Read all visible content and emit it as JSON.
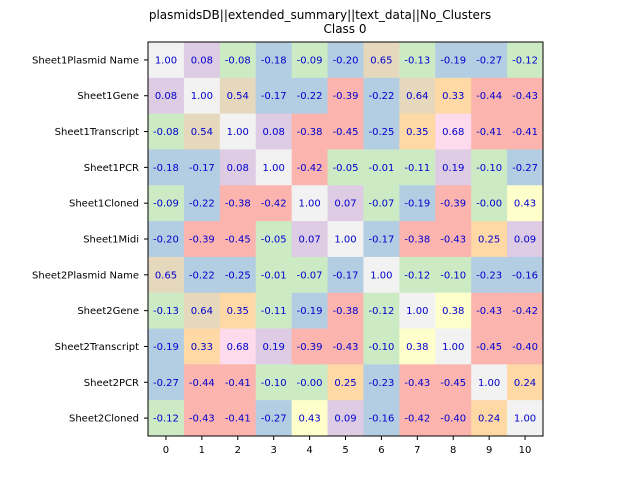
{
  "chart_data": {
    "type": "heatmap",
    "title": "plasmidsDB||extended_summary||text_data||No_Clusters",
    "subtitle": "Class 0",
    "xlabel": "",
    "ylabel": "",
    "x_ticks": [
      "0",
      "1",
      "2",
      "3",
      "4",
      "5",
      "6",
      "7",
      "8",
      "9",
      "10"
    ],
    "rows": [
      "Sheet1Plasmid Name",
      "Sheet1Gene",
      "Sheet1Transcript",
      "Sheet1PCR",
      "Sheet1Cloned",
      "Sheet1Midi",
      "Sheet2Plasmid Name",
      "Sheet2Gene",
      "Sheet2Transcript",
      "Sheet2PCR",
      "Sheet2Cloned"
    ],
    "values": [
      [
        1.0,
        0.08,
        -0.08,
        -0.18,
        -0.09,
        -0.2,
        0.65,
        -0.13,
        -0.19,
        -0.27,
        -0.12
      ],
      [
        0.08,
        1.0,
        0.54,
        -0.17,
        -0.22,
        -0.39,
        -0.22,
        0.64,
        0.33,
        -0.44,
        -0.43
      ],
      [
        -0.08,
        0.54,
        1.0,
        0.08,
        -0.38,
        -0.45,
        -0.25,
        0.35,
        0.68,
        -0.41,
        -0.41
      ],
      [
        -0.18,
        -0.17,
        0.08,
        1.0,
        -0.42,
        -0.05,
        -0.01,
        -0.11,
        0.19,
        -0.1,
        -0.27
      ],
      [
        -0.09,
        -0.22,
        -0.38,
        -0.42,
        1.0,
        0.07,
        -0.07,
        -0.19,
        -0.39,
        -0.0,
        0.43
      ],
      [
        -0.2,
        -0.39,
        -0.45,
        -0.05,
        0.07,
        1.0,
        -0.17,
        -0.38,
        -0.43,
        0.25,
        0.09
      ],
      [
        0.65,
        -0.22,
        -0.25,
        -0.01,
        -0.07,
        -0.17,
        1.0,
        -0.12,
        -0.1,
        -0.23,
        -0.16
      ],
      [
        -0.13,
        0.64,
        0.35,
        -0.11,
        -0.19,
        -0.38,
        -0.12,
        1.0,
        0.38,
        -0.43,
        -0.42
      ],
      [
        -0.19,
        0.33,
        0.68,
        0.19,
        -0.39,
        -0.43,
        -0.1,
        0.38,
        1.0,
        -0.45,
        -0.4
      ],
      [
        -0.27,
        -0.44,
        -0.41,
        -0.1,
        -0.0,
        0.25,
        -0.23,
        -0.43,
        -0.45,
        1.0,
        0.24
      ],
      [
        -0.12,
        -0.43,
        -0.41,
        -0.27,
        0.43,
        0.09,
        -0.16,
        -0.42,
        -0.4,
        0.24,
        1.0
      ]
    ],
    "value_labels": [
      [
        "1.00",
        "0.08",
        "-0.08",
        "-0.18",
        "-0.09",
        "-0.20",
        "0.65",
        "-0.13",
        "-0.19",
        "-0.27",
        "-0.12"
      ],
      [
        "0.08",
        "1.00",
        "0.54",
        "-0.17",
        "-0.22",
        "-0.39",
        "-0.22",
        "0.64",
        "0.33",
        "-0.44",
        "-0.43"
      ],
      [
        "-0.08",
        "0.54",
        "1.00",
        "0.08",
        "-0.38",
        "-0.45",
        "-0.25",
        "0.35",
        "0.68",
        "-0.41",
        "-0.41"
      ],
      [
        "-0.18",
        "-0.17",
        "0.08",
        "1.00",
        "-0.42",
        "-0.05",
        "-0.01",
        "-0.11",
        "0.19",
        "-0.10",
        "-0.27"
      ],
      [
        "-0.09",
        "-0.22",
        "-0.38",
        "-0.42",
        "1.00",
        "0.07",
        "-0.07",
        "-0.19",
        "-0.39",
        "-0.00",
        "0.43"
      ],
      [
        "-0.20",
        "-0.39",
        "-0.45",
        "-0.05",
        "0.07",
        "1.00",
        "-0.17",
        "-0.38",
        "-0.43",
        "0.25",
        "0.09"
      ],
      [
        "0.65",
        "-0.22",
        "-0.25",
        "-0.01",
        "-0.07",
        "-0.17",
        "1.00",
        "-0.12",
        "-0.10",
        "-0.23",
        "-0.16"
      ],
      [
        "-0.13",
        "0.64",
        "0.35",
        "-0.11",
        "-0.19",
        "-0.38",
        "-0.12",
        "1.00",
        "0.38",
        "-0.43",
        "-0.42"
      ],
      [
        "-0.19",
        "0.33",
        "0.68",
        "0.19",
        "-0.39",
        "-0.43",
        "-0.10",
        "0.38",
        "1.00",
        "-0.45",
        "-0.40"
      ],
      [
        "-0.27",
        "-0.44",
        "-0.41",
        "-0.10",
        "-0.00",
        "0.25",
        "-0.23",
        "-0.43",
        "-0.45",
        "1.00",
        "0.24"
      ],
      [
        "-0.12",
        "-0.43",
        "-0.41",
        "-0.27",
        "0.43",
        "0.09",
        "-0.16",
        "-0.42",
        "-0.40",
        "0.24",
        "1.00"
      ]
    ],
    "colormap": "Pastel1",
    "cell_colors": [
      [
        "#f2f2f2",
        "#decbe4",
        "#ccebc5",
        "#b3cde3",
        "#ccebc5",
        "#b3cde3",
        "#e5d8bd",
        "#ccebc5",
        "#b3cde3",
        "#b3cde3",
        "#ccebc5"
      ],
      [
        "#decbe4",
        "#f2f2f2",
        "#e5d8bd",
        "#b3cde3",
        "#b3cde3",
        "#fbb4ae",
        "#b3cde3",
        "#e5d8bd",
        "#fed9a6",
        "#fbb4ae",
        "#fbb4ae"
      ],
      [
        "#ccebc5",
        "#e5d8bd",
        "#f2f2f2",
        "#decbe4",
        "#fbb4ae",
        "#fbb4ae",
        "#b3cde3",
        "#fed9a6",
        "#fddaec",
        "#fbb4ae",
        "#fbb4ae"
      ],
      [
        "#b3cde3",
        "#b3cde3",
        "#decbe4",
        "#f2f2f2",
        "#fbb4ae",
        "#ccebc5",
        "#ccebc5",
        "#ccebc5",
        "#decbe4",
        "#ccebc5",
        "#b3cde3"
      ],
      [
        "#ccebc5",
        "#b3cde3",
        "#fbb4ae",
        "#fbb4ae",
        "#f2f2f2",
        "#decbe4",
        "#ccebc5",
        "#b3cde3",
        "#fbb4ae",
        "#ccebc5",
        "#ffffcc"
      ],
      [
        "#b3cde3",
        "#fbb4ae",
        "#fbb4ae",
        "#ccebc5",
        "#decbe4",
        "#f2f2f2",
        "#b3cde3",
        "#fbb4ae",
        "#fbb4ae",
        "#fed9a6",
        "#decbe4"
      ],
      [
        "#e5d8bd",
        "#b3cde3",
        "#b3cde3",
        "#ccebc5",
        "#ccebc5",
        "#b3cde3",
        "#f2f2f2",
        "#ccebc5",
        "#ccebc5",
        "#b3cde3",
        "#b3cde3"
      ],
      [
        "#ccebc5",
        "#e5d8bd",
        "#fed9a6",
        "#ccebc5",
        "#b3cde3",
        "#fbb4ae",
        "#ccebc5",
        "#f2f2f2",
        "#ffffcc",
        "#fbb4ae",
        "#fbb4ae"
      ],
      [
        "#b3cde3",
        "#fed9a6",
        "#fddaec",
        "#decbe4",
        "#fbb4ae",
        "#fbb4ae",
        "#ccebc5",
        "#ffffcc",
        "#f2f2f2",
        "#fbb4ae",
        "#fbb4ae"
      ],
      [
        "#b3cde3",
        "#fbb4ae",
        "#fbb4ae",
        "#ccebc5",
        "#ccebc5",
        "#fed9a6",
        "#b3cde3",
        "#fbb4ae",
        "#fbb4ae",
        "#f2f2f2",
        "#fed9a6"
      ],
      [
        "#ccebc5",
        "#fbb4ae",
        "#fbb4ae",
        "#b3cde3",
        "#ffffcc",
        "#decbe4",
        "#b3cde3",
        "#fbb4ae",
        "#fbb4ae",
        "#fed9a6",
        "#f2f2f2"
      ]
    ],
    "label_color": "#0000cc",
    "grid": false,
    "legend": "none"
  }
}
